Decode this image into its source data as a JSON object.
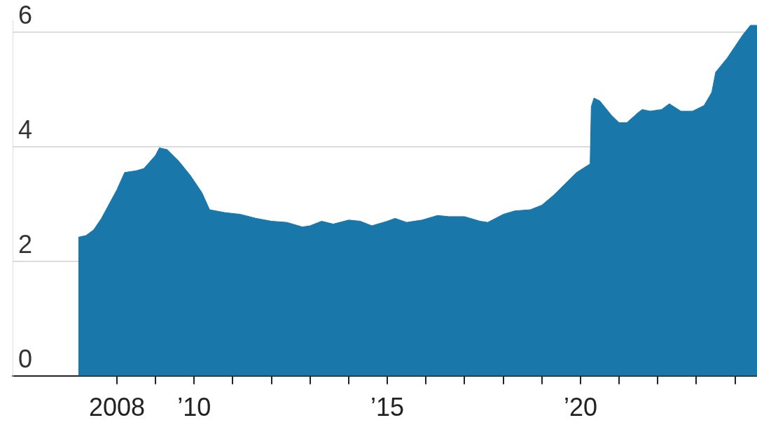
{
  "chart_data": {
    "type": "area",
    "color": "#1a77aa",
    "x": [
      2007.0,
      2007.2,
      2007.4,
      2007.6,
      2007.8,
      2008.0,
      2008.2,
      2008.5,
      2008.7,
      2009.0,
      2009.1,
      2009.3,
      2009.6,
      2009.9,
      2010.2,
      2010.4,
      2010.8,
      2011.2,
      2011.6,
      2012.0,
      2012.4,
      2012.8,
      2013.0,
      2013.3,
      2013.6,
      2014.0,
      2014.3,
      2014.6,
      2015.0,
      2015.2,
      2015.5,
      2015.9,
      2016.3,
      2016.6,
      2017.0,
      2017.4,
      2017.6,
      2018.0,
      2018.3,
      2018.7,
      2019.0,
      2019.3,
      2019.6,
      2019.9,
      2020.2,
      2020.25,
      2020.28,
      2020.35,
      2020.5,
      2020.8,
      2021.0,
      2021.2,
      2021.5,
      2021.6,
      2021.8,
      2022.1,
      2022.3,
      2022.6,
      2022.9,
      2023.2,
      2023.4,
      2023.5,
      2023.8,
      2024.0,
      2024.2,
      2024.4,
      2024.57
    ],
    "values": [
      2.42,
      2.45,
      2.55,
      2.75,
      3.0,
      3.25,
      3.55,
      3.58,
      3.62,
      3.85,
      3.98,
      3.95,
      3.75,
      3.5,
      3.2,
      2.9,
      2.85,
      2.82,
      2.75,
      2.7,
      2.68,
      2.6,
      2.62,
      2.7,
      2.65,
      2.72,
      2.7,
      2.62,
      2.7,
      2.75,
      2.68,
      2.72,
      2.8,
      2.78,
      2.78,
      2.7,
      2.68,
      2.82,
      2.88,
      2.9,
      2.98,
      3.15,
      3.35,
      3.55,
      3.68,
      3.7,
      4.7,
      4.85,
      4.8,
      4.55,
      4.42,
      4.42,
      4.6,
      4.65,
      4.62,
      4.65,
      4.75,
      4.62,
      4.62,
      4.72,
      4.95,
      5.3,
      5.55,
      5.75,
      5.95,
      6.12,
      6.12
    ],
    "xlim": [
      2005.3,
      2024.57
    ],
    "xticks": [
      {
        "value": 2008,
        "label": "2008"
      },
      {
        "value": 2009,
        "label": null
      },
      {
        "value": 2010,
        "label": "’10"
      },
      {
        "value": 2011,
        "label": null
      },
      {
        "value": 2012,
        "label": null
      },
      {
        "value": 2013,
        "label": null
      },
      {
        "value": 2014,
        "label": null
      },
      {
        "value": 2015,
        "label": "’15"
      },
      {
        "value": 2016,
        "label": null
      },
      {
        "value": 2017,
        "label": null
      },
      {
        "value": 2018,
        "label": null
      },
      {
        "value": 2019,
        "label": null
      },
      {
        "value": 2020,
        "label": "’20"
      },
      {
        "value": 2021,
        "label": null
      },
      {
        "value": 2022,
        "label": null
      },
      {
        "value": 2023,
        "label": null
      },
      {
        "value": 2024,
        "label": null
      }
    ],
    "ylim": [
      0,
      6.2
    ],
    "yticks": [
      0,
      2,
      4,
      6
    ],
    "grid": "y"
  }
}
